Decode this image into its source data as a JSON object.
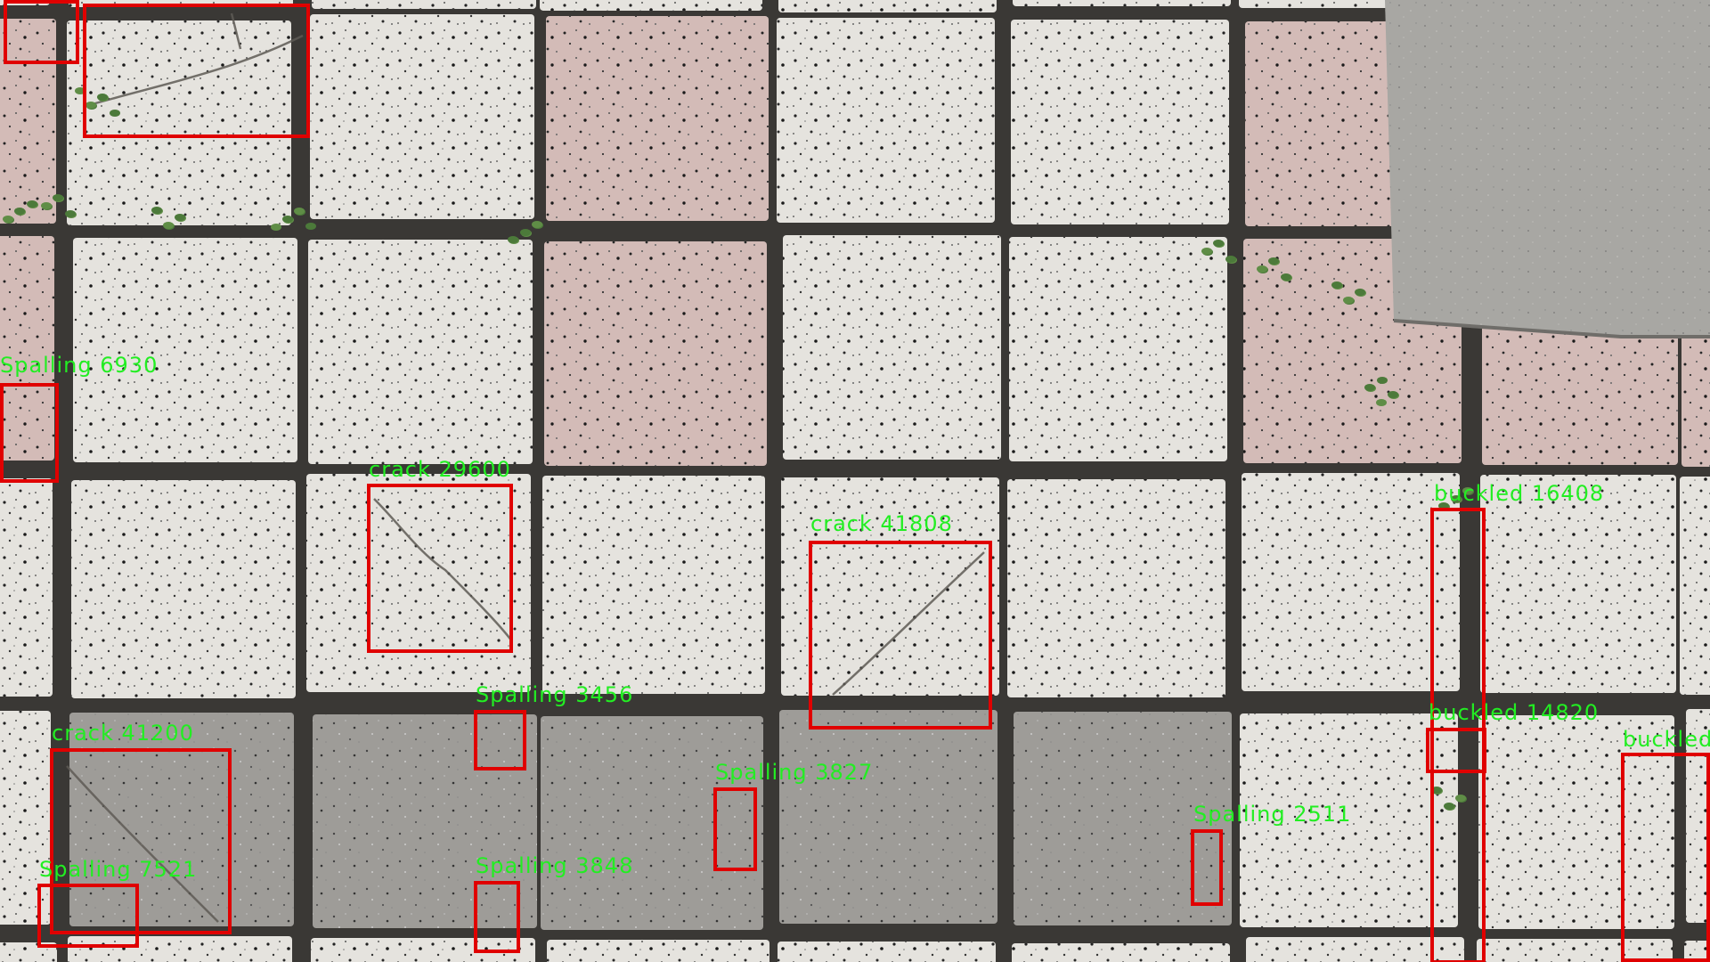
{
  "detections": [
    {
      "label": "Spalling 6930",
      "class": "Spalling",
      "score": "6930"
    },
    {
      "label": "crack 29600",
      "class": "crack",
      "score": "29600"
    },
    {
      "label": "crack 41808",
      "class": "crack",
      "score": "41808"
    },
    {
      "label": "buckled 16408",
      "class": "buckled",
      "score": "16408"
    },
    {
      "label": "Spalling 3456",
      "class": "Spalling",
      "score": "3456"
    },
    {
      "label": "crack 41200",
      "class": "crack",
      "score": "41200"
    },
    {
      "label": "buckled 14820",
      "class": "buckled",
      "score": "14820"
    },
    {
      "label": "buckled",
      "class": "buckled",
      "score": ""
    },
    {
      "label": "Spalling 3827",
      "class": "Spalling",
      "score": "3827"
    },
    {
      "label": "Spalling 2511",
      "class": "Spalling",
      "score": "2511"
    },
    {
      "label": "Spalling 7521",
      "class": "Spalling",
      "score": "7521"
    },
    {
      "label": "Spalling 3848",
      "class": "Spalling",
      "score": "3848"
    },
    {
      "label": "",
      "class": "",
      "score": ""
    },
    {
      "label": "",
      "class": "",
      "score": ""
    }
  ],
  "colors": {
    "box": "#e00000",
    "label": "#22ee22",
    "grout": "#3a3835",
    "tile_white": "#e4e2dd",
    "tile_pink": "#d4bcb8",
    "tile_gray": "#9c9a96",
    "curb": "#a9a8a4",
    "weed": "#4c7a3a"
  }
}
